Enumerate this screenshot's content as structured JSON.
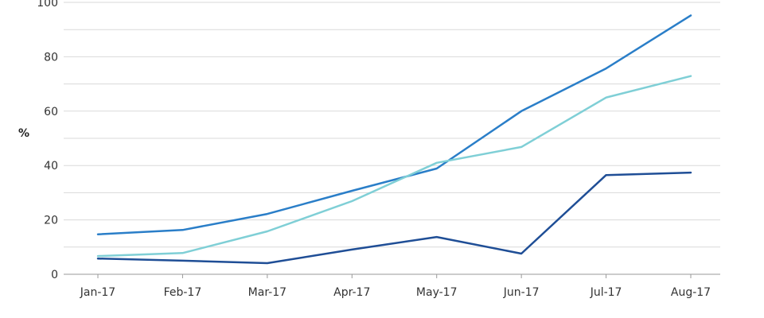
{
  "chart_data": {
    "type": "line",
    "title": "",
    "xlabel": "",
    "ylabel": "%",
    "ylim": [
      0,
      100
    ],
    "yticks": [
      0,
      20,
      40,
      60,
      80,
      100
    ],
    "grid": true,
    "legend": "none",
    "categories": [
      "Jan-17",
      "Feb-17",
      "Mar-17",
      "Apr-17",
      "May-17",
      "Jun-17",
      "Jul-17",
      "Aug-17"
    ],
    "series": [
      {
        "color": "#2a7ec8",
        "values": [
          14.7,
          16.3,
          22.2,
          30.7,
          38.9,
          60.0,
          75.7,
          95.2
        ]
      },
      {
        "color": "#7fcfd6",
        "values": [
          6.7,
          7.8,
          15.8,
          26.9,
          41.0,
          46.8,
          65.0,
          72.9
        ]
      },
      {
        "color": "#1f4e96",
        "values": [
          5.8,
          5.0,
          4.1,
          9.1,
          13.7,
          7.6,
          36.5,
          37.4
        ]
      }
    ]
  }
}
